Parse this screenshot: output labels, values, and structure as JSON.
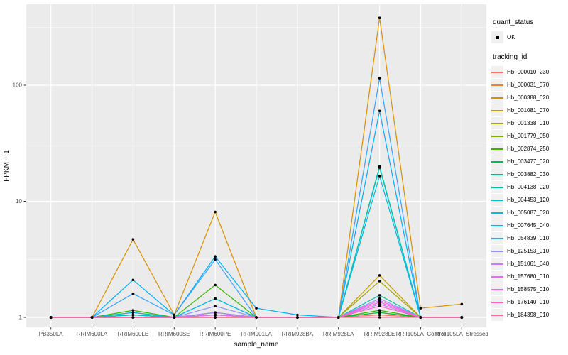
{
  "figure": {
    "background": "#FFFFFF",
    "panel_background": "#EBEBEB",
    "grid_color": "#FFFFFF",
    "tick_text_color": "#4D4D4D",
    "title_text_color": "#000000"
  },
  "axes": {
    "x_title": "sample_name",
    "y_title": "FPKM + 1",
    "y_tick_labels": [
      "1",
      "10",
      "100"
    ]
  },
  "legend": {
    "quant_title": "quant_status",
    "quant_items": [
      {
        "label": "OK",
        "marker": "black-point"
      }
    ],
    "tracking_title": "tracking_id"
  },
  "chart_data": {
    "type": "line",
    "x_type": "categorical",
    "y_scale": "log10",
    "xlabel": "sample_name",
    "ylabel": "FPKM + 1",
    "ylim": [
      0.82,
      500
    ],
    "y_major_ticks": [
      1,
      10,
      100
    ],
    "y_minor_ticks": [
      3.162,
      31.62,
      316.2
    ],
    "grid": "white-on-gray",
    "legend_position": "right",
    "point_marker": "black dot (quant_status OK)",
    "categories": [
      "PB350LA",
      "RRIM600LA",
      "RRIM600LE",
      "RRIM600SE",
      "RRIM600PE",
      "RRIM901LA",
      "RRIM928BA",
      "RRIM928LA",
      "RRIM928LE",
      "RRII105LA_Control",
      "RRII105LA_Stressed"
    ],
    "series": [
      {
        "name": "Hb_000010_230",
        "color": "#F8766D",
        "values": [
          1,
          1,
          1,
          1,
          1,
          1,
          1,
          1,
          1.05,
          1,
          1
        ]
      },
      {
        "name": "Hb_000031_070",
        "color": "#EA8331",
        "values": [
          1,
          1,
          1,
          1,
          1.05,
          1,
          1,
          1,
          1.1,
          1,
          1
        ]
      },
      {
        "name": "Hb_000388_020",
        "color": "#D89000",
        "values": [
          1,
          1,
          4.7,
          1.05,
          8.1,
          1,
          1,
          1,
          380,
          1.2,
          1.3
        ]
      },
      {
        "name": "Hb_001081_070",
        "color": "#C09B00",
        "values": [
          1,
          1,
          1,
          1,
          1.1,
          1,
          1,
          1,
          2.3,
          1,
          1
        ]
      },
      {
        "name": "Hb_001338_010",
        "color": "#A3A500",
        "values": [
          1,
          1,
          1,
          1,
          1.05,
          1,
          1,
          1,
          2.05,
          1,
          1
        ]
      },
      {
        "name": "Hb_001779_050",
        "color": "#7CAE00",
        "values": [
          1,
          1,
          1.05,
          1,
          1,
          1,
          1,
          1,
          1.1,
          1,
          1
        ]
      },
      {
        "name": "Hb_002874_250",
        "color": "#39B600",
        "values": [
          1,
          1,
          1.15,
          1,
          1.9,
          1,
          1,
          1,
          1.15,
          1,
          1
        ]
      },
      {
        "name": "Hb_003477_020",
        "color": "#00BB4E",
        "values": [
          1,
          1,
          1.1,
          1,
          1.05,
          1,
          1,
          1,
          1.1,
          1,
          1
        ]
      },
      {
        "name": "Hb_003882_030",
        "color": "#00BF7D",
        "values": [
          1,
          1,
          1.05,
          1,
          1.1,
          1,
          1,
          1,
          20,
          1,
          1
        ]
      },
      {
        "name": "Hb_004138_020",
        "color": "#00C1A3",
        "values": [
          1,
          1,
          1,
          1,
          1.05,
          1,
          1,
          1,
          1.55,
          1,
          1
        ]
      },
      {
        "name": "Hb_004453_120",
        "color": "#00BFC4",
        "values": [
          1,
          1,
          1.05,
          1,
          1.45,
          1,
          1,
          1,
          19.5,
          1,
          1
        ]
      },
      {
        "name": "Hb_005087_020",
        "color": "#00BAE0",
        "values": [
          1,
          1,
          1.1,
          1,
          1.45,
          1,
          1,
          1,
          16.5,
          1,
          1
        ]
      },
      {
        "name": "Hb_007645_040",
        "color": "#00B0F6",
        "values": [
          1,
          1,
          2.1,
          1.05,
          3.35,
          1.2,
          1.05,
          1,
          60,
          1,
          1
        ]
      },
      {
        "name": "Hb_054839_010",
        "color": "#35A2FF",
        "values": [
          1,
          1,
          1.6,
          1.05,
          3.15,
          1,
          1,
          1,
          115,
          1,
          1
        ]
      },
      {
        "name": "Hb_125153_010",
        "color": "#9590FF",
        "values": [
          1,
          1,
          1,
          1,
          1.25,
          1,
          1,
          1,
          1.45,
          1,
          1
        ]
      },
      {
        "name": "Hb_151061_040",
        "color": "#C77CFF",
        "values": [
          1,
          1,
          1,
          1,
          1.1,
          1,
          1,
          1,
          1.3,
          1,
          1
        ]
      },
      {
        "name": "Hb_157680_010",
        "color": "#E76BF3",
        "values": [
          1,
          1,
          1,
          1,
          1.05,
          1,
          1,
          1,
          1.4,
          1,
          1
        ]
      },
      {
        "name": "Hb_158575_010",
        "color": "#FA62DB",
        "values": [
          1,
          1,
          1,
          1,
          1,
          1,
          1,
          1,
          1.35,
          1,
          1
        ]
      },
      {
        "name": "Hb_176140_010",
        "color": "#FF62BC",
        "values": [
          1,
          1,
          1,
          1,
          1,
          1,
          1,
          1,
          1.25,
          1,
          1
        ]
      },
      {
        "name": "Hb_184398_010",
        "color": "#FF6A98",
        "values": [
          1,
          1,
          1,
          1,
          1,
          1,
          1,
          1,
          1,
          1,
          1
        ]
      }
    ]
  }
}
